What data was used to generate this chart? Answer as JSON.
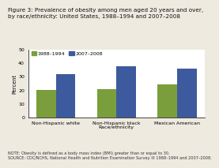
{
  "title_line1": "Figure 3: Prevalence of obesity among men aged 20 years and over,",
  "title_line2": "by race/ethnicity: United States, 1988–1994 and 2007–2008",
  "categories": [
    "Non-Hispanic white",
    "Non-Hispanic black\nRace/ethnicity",
    "Mexican American"
  ],
  "xtick_labels": [
    "Non-Hispanic white",
    "Non-Hispanic black\nRace/ethnicity",
    "Mexican American"
  ],
  "series": [
    {
      "label": "1988–1994",
      "values": [
        20.3,
        21.0,
        24.1
      ],
      "color": "#7a9e3b"
    },
    {
      "label": "2007–2008",
      "values": [
        32.0,
        37.8,
        36.2
      ],
      "color": "#3d5a9e"
    }
  ],
  "ylabel": "Percent",
  "ylim": [
    0,
    50
  ],
  "yticks": [
    0,
    10,
    20,
    30,
    40,
    50
  ],
  "note_line1": "NOTE: Obesity is defined as a body mass index (BMI) greater than or equal to 30.",
  "note_line2": "SOURCE: CDC/NCHS, National Health and Nutrition Examination Survey III 1988–1994 and 2007–2008.",
  "title_fontsize": 5.2,
  "axis_label_fontsize": 4.8,
  "tick_fontsize": 4.5,
  "note_fontsize": 3.6,
  "legend_fontsize": 4.5,
  "bar_width": 0.32,
  "background_color": "#eeeae0",
  "plot_bg_color": "#ffffff"
}
